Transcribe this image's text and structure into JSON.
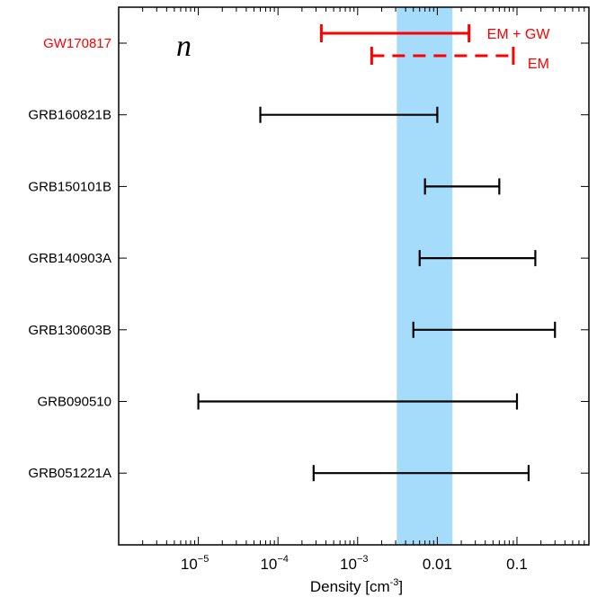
{
  "chart_data": {
    "type": "interval",
    "panel_label": "n",
    "xlabel": "Density [cm",
    "xlabel_exponent": "-3",
    "xlabel_suffix": "]",
    "xscale": "log",
    "xlim": [
      1e-06,
      0.8
    ],
    "xticks": [
      {
        "value": 1e-05,
        "base": "10",
        "exp": "−5"
      },
      {
        "value": 0.0001,
        "base": "10",
        "exp": "−4"
      },
      {
        "value": 0.001,
        "base": "10",
        "exp": "−3"
      },
      {
        "value": 0.01,
        "label": "0.01"
      },
      {
        "value": 0.1,
        "label": "0.1"
      }
    ],
    "shaded_band": {
      "low": 0.0031,
      "high": 0.0155,
      "color": "#a6dcfb"
    },
    "rows": [
      {
        "name": "GW170817",
        "color": "#ff0000",
        "intervals": [
          {
            "low": 0.00035,
            "high": 0.025,
            "style": "solid",
            "label": "EM + GW"
          },
          {
            "low": 0.0015,
            "high": 0.09,
            "style": "dashed",
            "label": "EM"
          }
        ]
      },
      {
        "name": "GRB160821B",
        "color": "#000000",
        "intervals": [
          {
            "low": 6e-05,
            "high": 0.01,
            "style": "solid"
          }
        ]
      },
      {
        "name": "GRB150101B",
        "color": "#000000",
        "intervals": [
          {
            "low": 0.007,
            "high": 0.06,
            "style": "solid"
          }
        ]
      },
      {
        "name": "GRB140903A",
        "color": "#000000",
        "intervals": [
          {
            "low": 0.006,
            "high": 0.17,
            "style": "solid"
          }
        ]
      },
      {
        "name": "GRB130603B",
        "color": "#000000",
        "intervals": [
          {
            "low": 0.005,
            "high": 0.3,
            "style": "solid"
          }
        ]
      },
      {
        "name": "GRB090510",
        "color": "#000000",
        "intervals": [
          {
            "low": 1e-05,
            "high": 0.1,
            "style": "solid"
          }
        ]
      },
      {
        "name": "GRB051221A",
        "color": "#000000",
        "intervals": [
          {
            "low": 0.00028,
            "high": 0.14,
            "style": "solid"
          }
        ]
      }
    ]
  }
}
